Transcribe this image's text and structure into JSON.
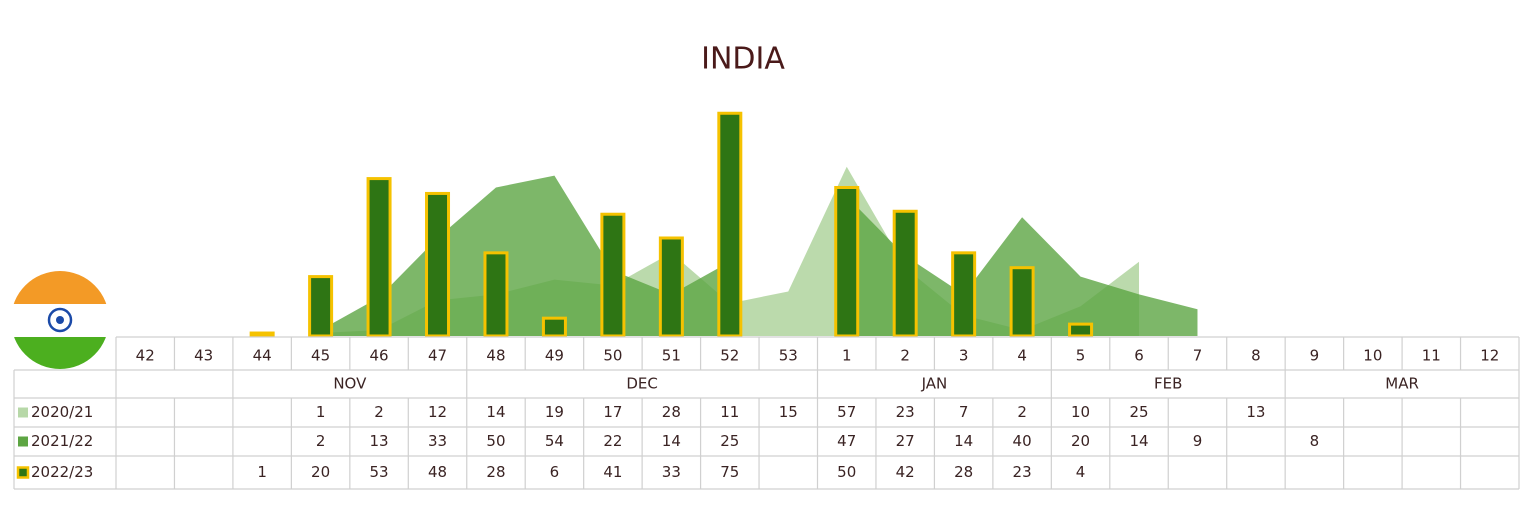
{
  "chart_data": {
    "type": "bar",
    "title": "INDIA",
    "categories": [
      42,
      43,
      44,
      45,
      46,
      47,
      48,
      49,
      50,
      51,
      52,
      53,
      1,
      2,
      3,
      4,
      5,
      6,
      7,
      8,
      9,
      10,
      11,
      12
    ],
    "months": [
      null,
      null,
      "NOV",
      "NOV",
      "NOV",
      "NOV",
      "DEC",
      "DEC",
      "DEC",
      "DEC",
      "DEC",
      "DEC",
      "JAN",
      "JAN",
      "JAN",
      "JAN",
      "FEB",
      "FEB",
      "FEB",
      "FEB",
      "MAR",
      "MAR",
      "MAR",
      "MAR"
    ],
    "series": [
      {
        "name": "2020/21",
        "type": "area",
        "color": "#b7d8a8",
        "values": [
          null,
          null,
          null,
          1,
          2,
          12,
          14,
          19,
          17,
          28,
          11,
          15,
          57,
          23,
          7,
          2,
          10,
          25,
          null,
          13,
          null,
          null,
          null,
          null
        ]
      },
      {
        "name": "2021/22",
        "type": "area",
        "color": "#5da543",
        "values": [
          null,
          null,
          null,
          2,
          13,
          33,
          50,
          54,
          22,
          14,
          25,
          null,
          47,
          27,
          14,
          40,
          20,
          14,
          9,
          null,
          8,
          null,
          null,
          null
        ]
      },
      {
        "name": "2022/23",
        "type": "bar",
        "color": "#2e7514",
        "edge": "#f5c200",
        "values": [
          null,
          null,
          1,
          20,
          53,
          48,
          28,
          6,
          41,
          33,
          75,
          null,
          50,
          42,
          28,
          23,
          4,
          null,
          null,
          null,
          null,
          null,
          null,
          null
        ]
      }
    ]
  }
}
